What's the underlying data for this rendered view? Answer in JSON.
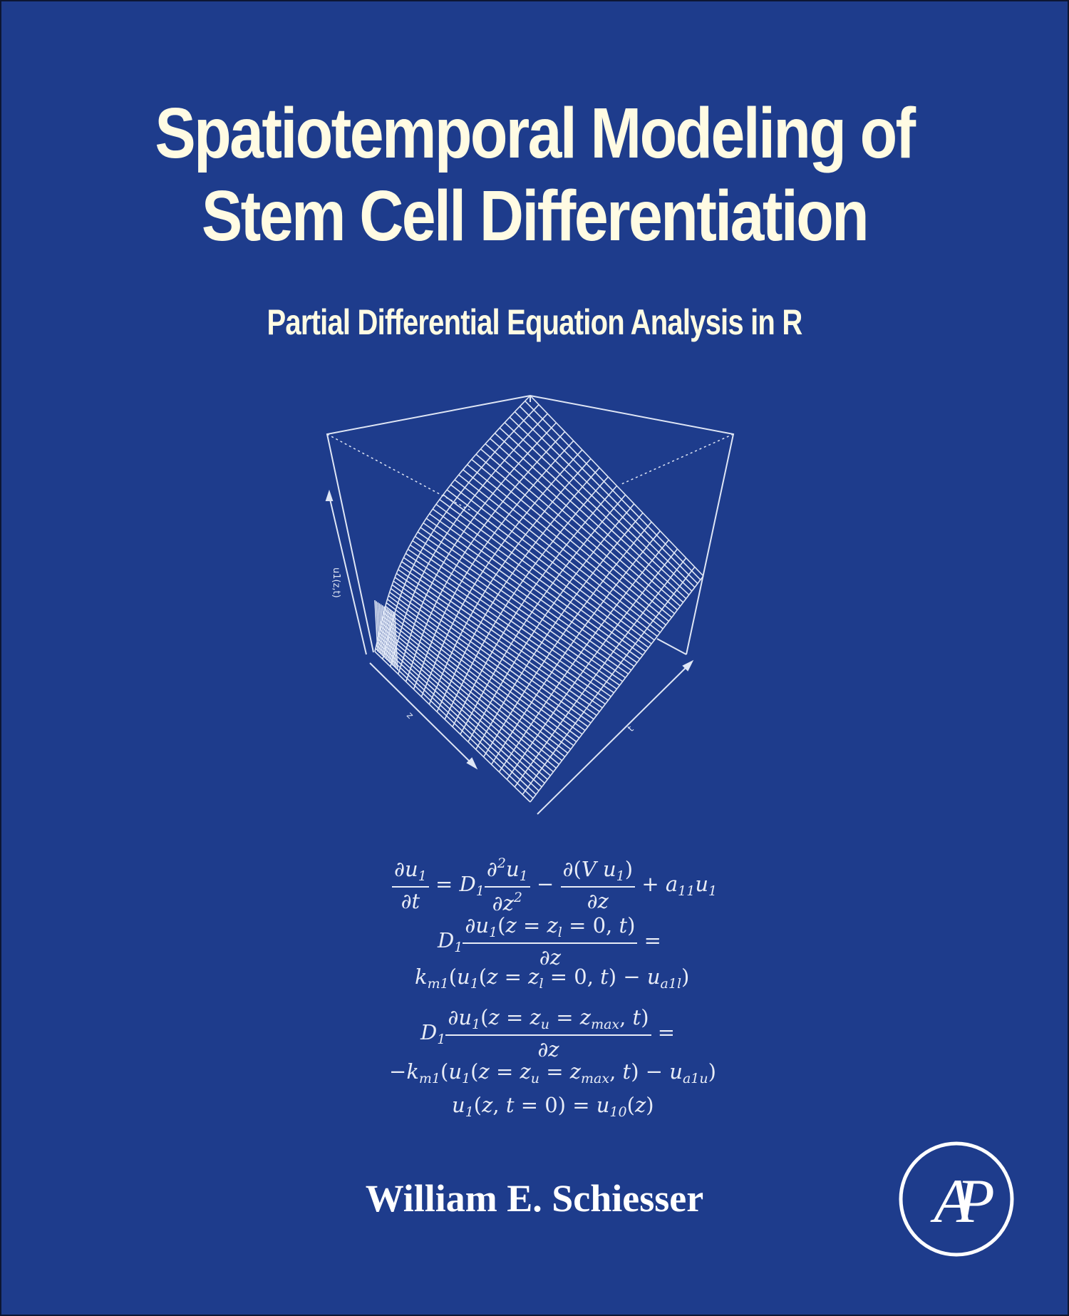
{
  "cover": {
    "background_color": "#1e3c8c",
    "text_color": "#fffbe3",
    "title_line_1": "Spatiotemporal Modeling of",
    "title_line_2": "Stem Cell Differentiation",
    "subtitle": "Partial Differential Equation Analysis in R",
    "author": "William E. Schiesser",
    "publisher_logo": {
      "icon": "ap-logo-icon",
      "letters": "AP"
    }
  },
  "figure": {
    "type": "3d-perspective-surface",
    "z_axis_label": "u1(z,t)",
    "x_axis_label": "z",
    "y_axis_label": "t",
    "line_color": "#dfe6f5"
  },
  "equations": {
    "eq1": "∂u1/∂t = D1 ∂²u1/∂z² − ∂(V u1)/∂z + a11 u1",
    "eq2": "D1 ∂u1(z = zl = 0, t)/∂z =",
    "eq3": "km1(u1(z = zl = 0, t) − ua1l)",
    "eq4": "D1 ∂u1(z = zu = zmax, t)/∂z =",
    "eq5": "−km1(u1(z = zu = zmax, t) − ua1u)",
    "eq6": "u1(z, t = 0) = u10(z)"
  }
}
